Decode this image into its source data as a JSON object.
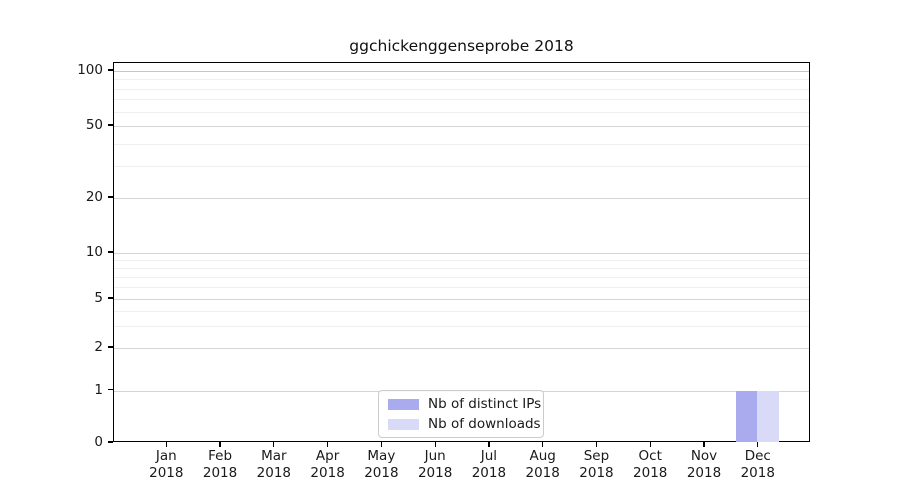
{
  "chart_data": {
    "type": "bar",
    "title": "ggchickenggenseprobe 2018",
    "categories": [
      {
        "month": "Jan",
        "year": "2018"
      },
      {
        "month": "Feb",
        "year": "2018"
      },
      {
        "month": "Mar",
        "year": "2018"
      },
      {
        "month": "Apr",
        "year": "2018"
      },
      {
        "month": "May",
        "year": "2018"
      },
      {
        "month": "Jun",
        "year": "2018"
      },
      {
        "month": "Jul",
        "year": "2018"
      },
      {
        "month": "Aug",
        "year": "2018"
      },
      {
        "month": "Sep",
        "year": "2018"
      },
      {
        "month": "Oct",
        "year": "2018"
      },
      {
        "month": "Nov",
        "year": "2018"
      },
      {
        "month": "Dec",
        "year": "2018"
      }
    ],
    "series": [
      {
        "name": "Nb of distinct IPs",
        "color": "#aaaaee",
        "values": [
          0,
          0,
          0,
          0,
          0,
          0,
          0,
          0,
          0,
          0,
          0,
          1
        ]
      },
      {
        "name": "Nb of downloads",
        "color": "#d9d9f8",
        "values": [
          0,
          0,
          0,
          0,
          0,
          0,
          0,
          0,
          0,
          0,
          0,
          1
        ]
      }
    ],
    "y_axis": {
      "scale": "symlog",
      "range": [
        0,
        100
      ],
      "ticks": [
        0,
        1,
        2,
        5,
        10,
        20,
        50,
        100
      ],
      "minor_ticks": [
        3,
        4,
        6,
        7,
        8,
        9,
        30,
        40,
        60,
        70,
        80,
        90
      ]
    },
    "x_axis": {
      "label": "",
      "tick_format": "month-over-year"
    },
    "grid": "horizontal",
    "legend": {
      "position": "bottom-center"
    }
  }
}
